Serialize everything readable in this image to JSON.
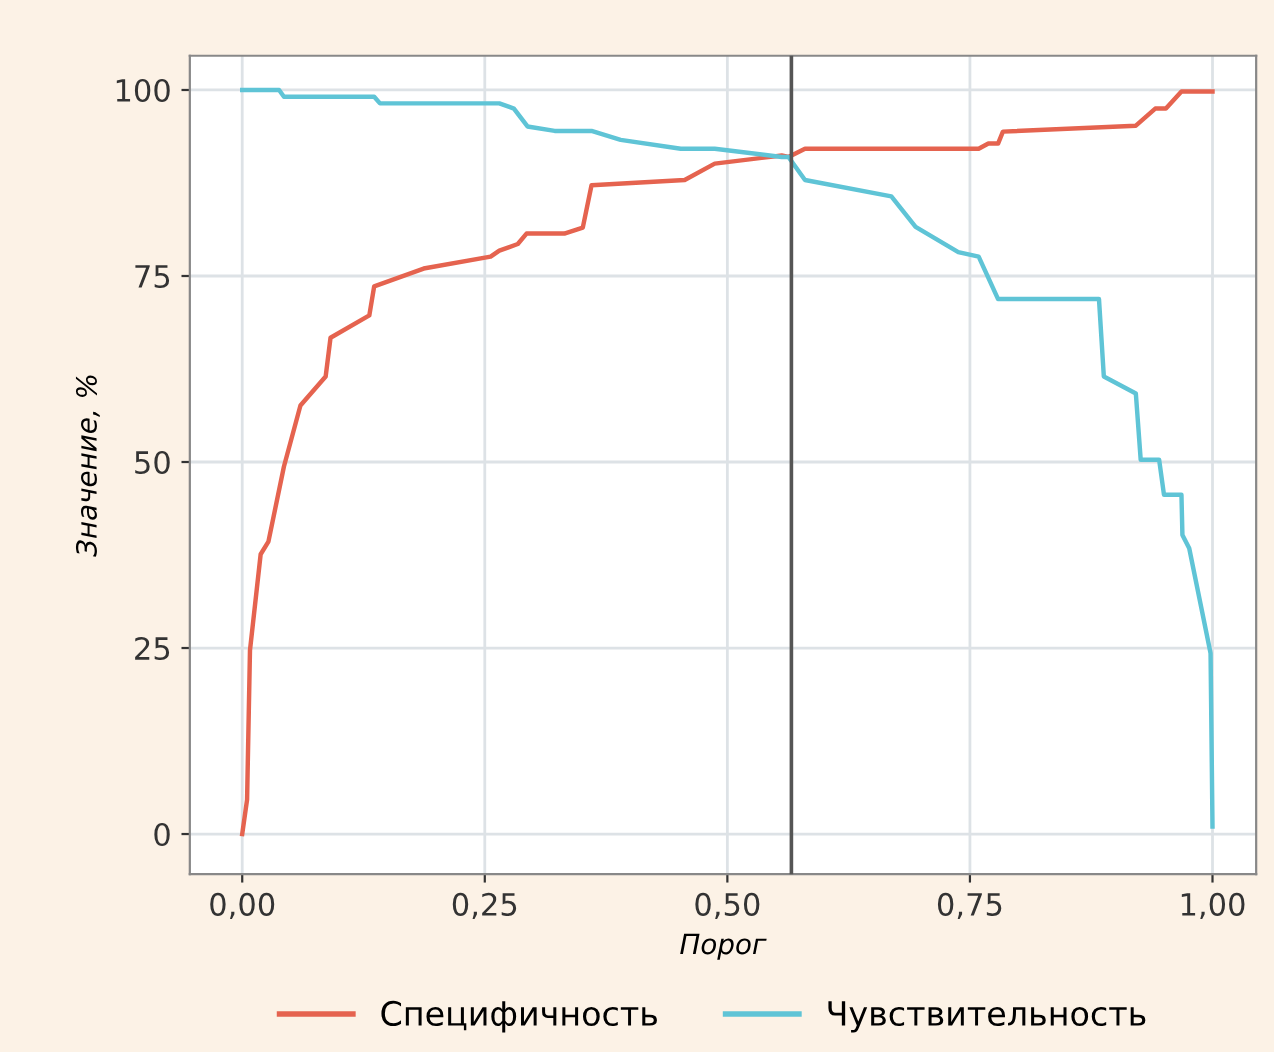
{
  "chart_data": {
    "type": "line",
    "xlabel": "Порог",
    "ylabel": "Значение, %",
    "xlim": [
      -0.054,
      1.045
    ],
    "ylim": [
      -5.4,
      104.6
    ],
    "xticks": [
      {
        "value": 0,
        "label": "0,00"
      },
      {
        "value": 0.25,
        "label": "0,25"
      },
      {
        "value": 0.5,
        "label": "0,50"
      },
      {
        "value": 0.75,
        "label": "0,75"
      },
      {
        "value": 1,
        "label": "1,00"
      }
    ],
    "yticks": [
      0,
      25,
      50,
      75,
      100
    ],
    "grid": true,
    "legend": "bottom",
    "line_style": "solid",
    "marker": "none",
    "ref_lines": [
      {
        "axis": "x",
        "value": 0.566,
        "color": "#555555"
      }
    ],
    "series": [
      {
        "name": "Специфичность",
        "color": "#e5634f",
        "x": [
          0,
          0.005,
          0.008,
          0.019,
          0.027,
          0.043,
          0.06,
          0.086,
          0.091,
          0.131,
          0.136,
          0.187,
          0.256,
          0.265,
          0.284,
          0.293,
          0.332,
          0.351,
          0.36,
          0.456,
          0.487,
          0.556,
          0.563,
          0.58,
          0.759,
          0.769,
          0.779,
          0.784,
          0.921,
          0.941,
          0.952,
          0.968,
          1.0
        ],
        "values": [
          0,
          4.6,
          24.7,
          37.6,
          39.3,
          49.4,
          57.6,
          61.5,
          66.7,
          69.7,
          73.6,
          76,
          77.6,
          78.4,
          79.3,
          80.7,
          80.7,
          81.5,
          87.2,
          87.9,
          90.1,
          91.2,
          91,
          92.1,
          92.1,
          92.8,
          92.8,
          94.4,
          95.2,
          97.5,
          97.5,
          99.8,
          99.8
        ]
      },
      {
        "name": "Чувствительность",
        "color": "#5fc4d6",
        "x": [
          0,
          0.038,
          0.043,
          0.136,
          0.142,
          0.265,
          0.28,
          0.294,
          0.322,
          0.36,
          0.39,
          0.452,
          0.487,
          0.556,
          0.563,
          0.58,
          0.669,
          0.694,
          0.738,
          0.759,
          0.779,
          0.883,
          0.888,
          0.921,
          0.926,
          0.945,
          0.95,
          0.968,
          0.969,
          0.976,
          0.998,
          1.0
        ],
        "values": [
          100,
          100,
          99.1,
          99.1,
          98.2,
          98.2,
          97.5,
          95.1,
          94.5,
          94.5,
          93.3,
          92.1,
          92.1,
          91,
          91,
          87.9,
          85.7,
          81.6,
          78.2,
          77.6,
          71.9,
          71.9,
          61.5,
          59.2,
          50.3,
          50.3,
          45.6,
          45.6,
          40.2,
          38.4,
          24.3,
          1
        ]
      }
    ]
  }
}
